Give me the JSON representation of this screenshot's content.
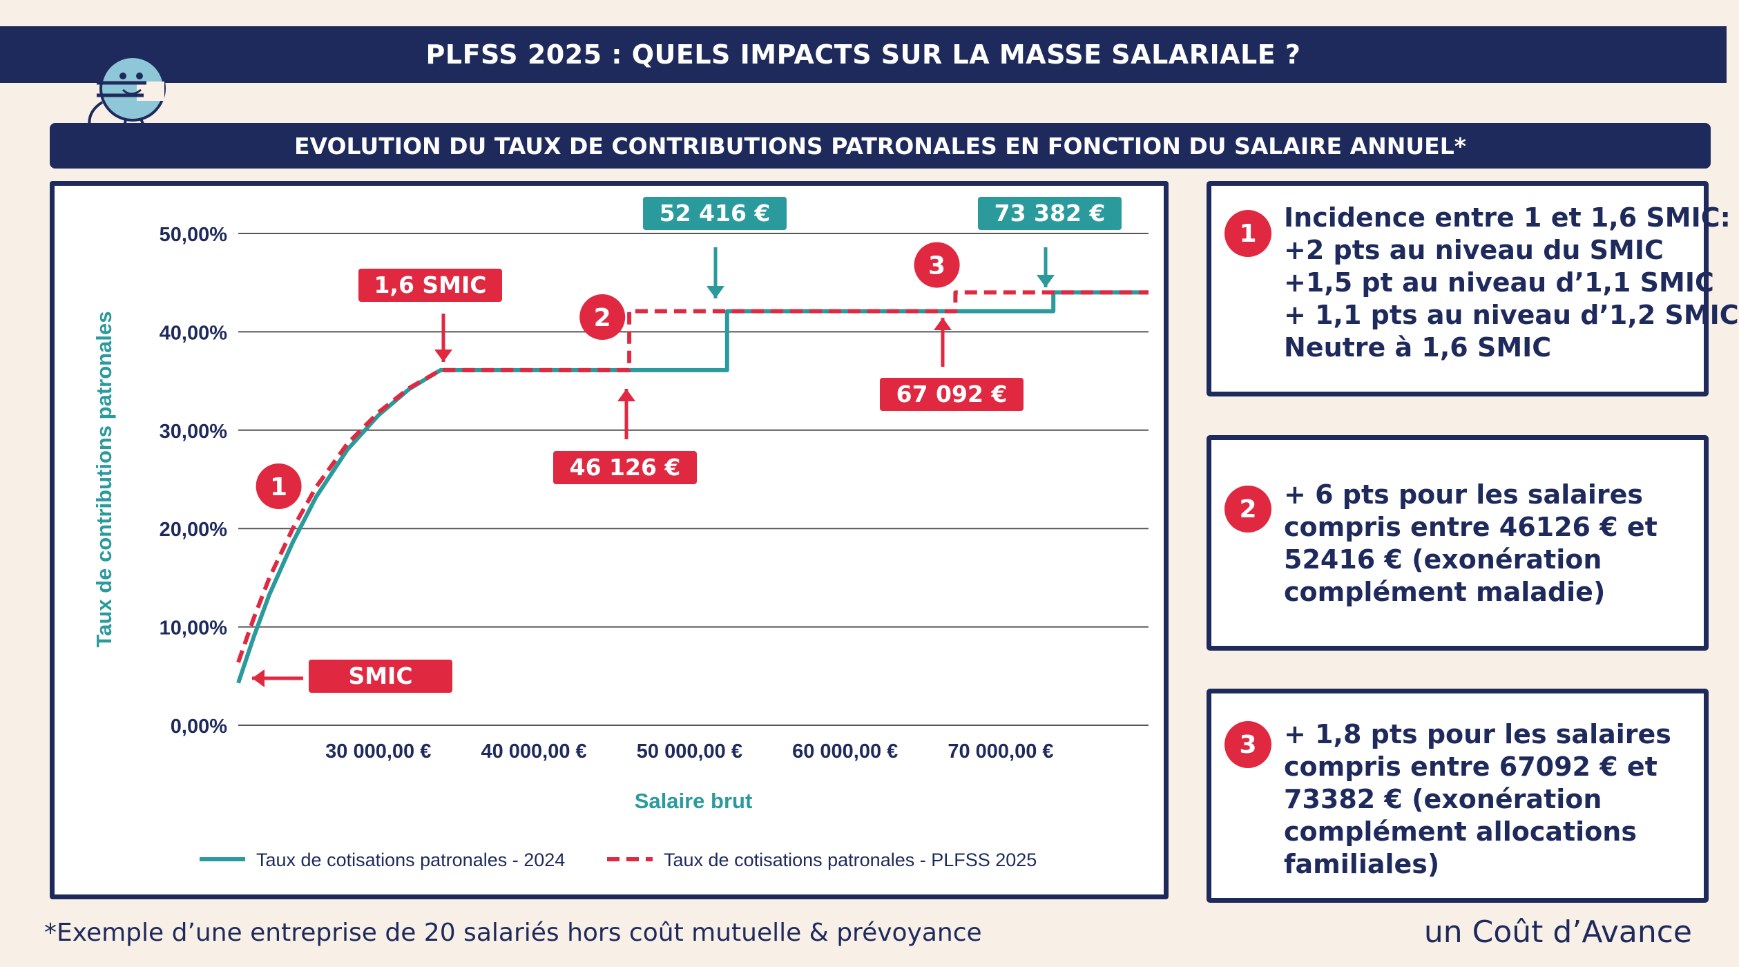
{
  "header": {
    "title": "PLFSS 2025 : QUELS IMPACTS SUR LA MASSE SALARIALE ?",
    "subtitle": "EVOLUTION DU TAUX DE CONTRIBUTIONS PATRONALES EN FONCTION DU SALAIRE ANNUEL*"
  },
  "colors": {
    "navy": "#1e2a5c",
    "red": "#e02840",
    "teal": "#2a9a9c",
    "background": "#f8efe7"
  },
  "icons": {
    "mascot": "euro-character-icon"
  },
  "chart_data": {
    "type": "line",
    "xlabel": "Salaire brut",
    "ylabel": "Taux de contributions patronales",
    "xlim": [
      21000,
      79500
    ],
    "ylim": [
      0,
      50
    ],
    "y_ticks": [
      {
        "value": 0,
        "label": "0,00%"
      },
      {
        "value": 10,
        "label": "10,00%"
      },
      {
        "value": 20,
        "label": "20,00%"
      },
      {
        "value": 30,
        "label": "30,00%"
      },
      {
        "value": 40,
        "label": "40,00%"
      },
      {
        "value": 50,
        "label": "50,00%"
      }
    ],
    "x_ticks": [
      {
        "value": 30000,
        "label": "30 000,00 €"
      },
      {
        "value": 40000,
        "label": "40 000,00 €"
      },
      {
        "value": 50000,
        "label": "50 000,00 €"
      },
      {
        "value": 60000,
        "label": "60 000,00 €"
      },
      {
        "value": 70000,
        "label": "70 000,00 €"
      }
    ],
    "grid": true,
    "legend_position": "bottom",
    "series": [
      {
        "name": "Taux de cotisations patronales - 2024",
        "color": "#2a9a9c",
        "style": "solid",
        "points": [
          [
            21000,
            4.3
          ],
          [
            22000,
            9
          ],
          [
            23000,
            13.3
          ],
          [
            24500,
            18.6
          ],
          [
            26000,
            23.2
          ],
          [
            28000,
            28
          ],
          [
            30000,
            31.5
          ],
          [
            32000,
            34.2
          ],
          [
            34000,
            36.1
          ],
          [
            35000,
            36.1
          ],
          [
            40000,
            36.1
          ],
          [
            46126,
            36.1
          ],
          [
            52416,
            36.1
          ],
          [
            52416,
            42.1
          ],
          [
            60000,
            42.1
          ],
          [
            67092,
            42.1
          ],
          [
            73382,
            42.1
          ],
          [
            73382,
            44
          ],
          [
            79500,
            44
          ]
        ]
      },
      {
        "name": "Taux de cotisations patronales - PLFSS 2025",
        "color": "#e02840",
        "style": "dashed",
        "points": [
          [
            21000,
            6.4
          ],
          [
            22000,
            10.9
          ],
          [
            23000,
            15
          ],
          [
            24500,
            20
          ],
          [
            26000,
            24.2
          ],
          [
            28000,
            28.6
          ],
          [
            30000,
            31.8
          ],
          [
            32000,
            34.3
          ],
          [
            34000,
            36.1
          ],
          [
            35000,
            36.1
          ],
          [
            40000,
            36.1
          ],
          [
            46126,
            36.1
          ],
          [
            46126,
            42.1
          ],
          [
            52416,
            42.1
          ],
          [
            60000,
            42.1
          ],
          [
            67092,
            42.1
          ],
          [
            67092,
            44
          ],
          [
            73382,
            44
          ],
          [
            79500,
            44
          ]
        ]
      }
    ],
    "annotations": [
      {
        "id": "smic",
        "label": "SMIC",
        "color": "#e02840",
        "target": [
          21000,
          4.6
        ]
      },
      {
        "id": "smic16",
        "label": "1,6 SMIC",
        "color": "#e02840",
        "target": [
          34000,
          36.1
        ]
      },
      {
        "id": "a46126",
        "label": "46 126 €",
        "color": "#e02840",
        "target": [
          46126,
          35.9
        ]
      },
      {
        "id": "a52416",
        "label": "52 416 €",
        "color": "#2a9a9c",
        "target": [
          52416,
          42.2
        ]
      },
      {
        "id": "a67092",
        "label": "67 092 €",
        "color": "#e02840",
        "target": [
          67092,
          41.6
        ]
      },
      {
        "id": "a73382",
        "label": "73 382 €",
        "color": "#2a9a9c",
        "target": [
          73382,
          44
        ]
      }
    ],
    "markers": [
      {
        "label": "1",
        "at": [
          23600,
          24.3
        ]
      },
      {
        "label": "2",
        "at": [
          44400,
          41.5
        ]
      },
      {
        "label": "3",
        "at": [
          65900,
          46.8
        ]
      }
    ]
  },
  "info_boxes": [
    {
      "number": "1",
      "lines": [
        "Incidence entre 1 et 1,6 SMIC:",
        "+2 pts au niveau du SMIC",
        "+1,5 pt au niveau d’1,1 SMIC",
        "+ 1,1 pts au niveau d’1,2 SMIC",
        "Neutre à 1,6 SMIC"
      ]
    },
    {
      "number": "2",
      "lines": [
        "+ 6 pts pour les salaires",
        "compris entre 46126 € et",
        "52416 € (exonération",
        "complément maladie)"
      ]
    },
    {
      "number": "3",
      "lines": [
        "+ 1,8 pts pour les salaires",
        "compris entre 67092 € et",
        "73382 € (exonération",
        "complément allocations",
        "familiales)"
      ]
    }
  ],
  "footer": {
    "note": "*Exemple d’une entreprise de 20 salariés hors coût mutuelle & prévoyance",
    "brand": "un Coût d’Avance"
  }
}
